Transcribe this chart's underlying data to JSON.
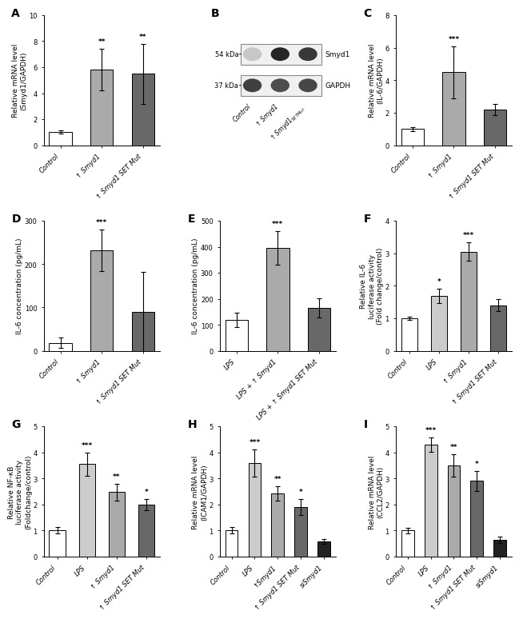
{
  "panel_A": {
    "label": "A",
    "categories": [
      "Control",
      "↑ Smyd1",
      "↑ Smyd1 SET Mut"
    ],
    "values": [
      1.0,
      5.8,
      5.5
    ],
    "errors": [
      0.12,
      1.6,
      2.3
    ],
    "colors": [
      "#ffffff",
      "#aaaaaa",
      "#686868"
    ],
    "ylabel": "Relative mRNA level\n(Smyd1/GAPDH)",
    "ylim": [
      0,
      10
    ],
    "yticks": [
      0,
      2,
      4,
      6,
      8,
      10
    ],
    "significance": [
      "",
      "**",
      "**"
    ]
  },
  "panel_C": {
    "label": "C",
    "categories": [
      "Control",
      "↑ Smyd1",
      "↑ Smyd1 SET Mut"
    ],
    "values": [
      1.0,
      4.5,
      2.2
    ],
    "errors": [
      0.12,
      1.6,
      0.35
    ],
    "colors": [
      "#ffffff",
      "#aaaaaa",
      "#686868"
    ],
    "ylabel": "Relative mRNA level\n(IL-6/GAPDH)",
    "ylim": [
      0,
      8
    ],
    "yticks": [
      0,
      2,
      4,
      6,
      8
    ],
    "significance": [
      "",
      "***",
      ""
    ]
  },
  "panel_D": {
    "label": "D",
    "categories": [
      "Control",
      "↑ Smyd1",
      "↑ Smyd1 SET Mut"
    ],
    "values": [
      18,
      232,
      90
    ],
    "errors": [
      12,
      48,
      92
    ],
    "colors": [
      "#ffffff",
      "#aaaaaa",
      "#686868"
    ],
    "ylabel": "IL-6 concentration (pg/mL)",
    "ylim": [
      0,
      300
    ],
    "yticks": [
      0,
      100,
      200,
      300
    ],
    "significance": [
      "",
      "***",
      ""
    ]
  },
  "panel_E": {
    "label": "E",
    "categories": [
      "LPS",
      "LPS + ↑ Smyd1",
      "LPS + ↑ Smyd1 SET Mut"
    ],
    "values": [
      118,
      395,
      165
    ],
    "errors": [
      28,
      65,
      38
    ],
    "colors": [
      "#ffffff",
      "#aaaaaa",
      "#686868"
    ],
    "ylabel": "IL-6 concentration (pg/mL)",
    "ylim": [
      0,
      500
    ],
    "yticks": [
      0,
      100,
      200,
      300,
      400,
      500
    ],
    "significance": [
      "",
      "***",
      ""
    ]
  },
  "panel_F": {
    "label": "F",
    "categories": [
      "Control",
      "LPS",
      "↑ Smyd1",
      "↑ Smyd1 SET Mut"
    ],
    "values": [
      1.0,
      1.7,
      3.05,
      1.4
    ],
    "errors": [
      0.06,
      0.22,
      0.28,
      0.18
    ],
    "colors": [
      "#ffffff",
      "#cccccc",
      "#aaaaaa",
      "#686868"
    ],
    "ylabel": "Relative IL-6\nluciferase activity\n(Fold change/control)",
    "ylim": [
      0,
      4
    ],
    "yticks": [
      0,
      1,
      2,
      3,
      4
    ],
    "significance": [
      "",
      "*",
      "***",
      ""
    ]
  },
  "panel_G": {
    "label": "G",
    "categories": [
      "Control",
      "LPS",
      "↑ Smyd1",
      "↑ Smyd1 SET Mut"
    ],
    "values": [
      1.0,
      3.55,
      2.48,
      2.0
    ],
    "errors": [
      0.12,
      0.45,
      0.32,
      0.22
    ],
    "colors": [
      "#ffffff",
      "#cccccc",
      "#aaaaaa",
      "#686868"
    ],
    "ylabel": "Relative NF-κB\nluciferase activity\n(Foldchange/control)",
    "ylim": [
      0,
      5
    ],
    "yticks": [
      0,
      1,
      2,
      3,
      4,
      5
    ],
    "significance": [
      "",
      "***",
      "**",
      "*"
    ]
  },
  "panel_H": {
    "label": "H",
    "categories": [
      "Control",
      "LPS",
      "↑Smyd1",
      "↑ Smyd1 SET Mut",
      "siSmyd1"
    ],
    "values": [
      1.0,
      3.58,
      2.42,
      1.9,
      0.58
    ],
    "errors": [
      0.12,
      0.52,
      0.28,
      0.3,
      0.1
    ],
    "colors": [
      "#ffffff",
      "#cccccc",
      "#aaaaaa",
      "#686868",
      "#222222"
    ],
    "ylabel": "Relative mRNA level\n(ICAM1/GAPDH)",
    "ylim": [
      0,
      5
    ],
    "yticks": [
      0,
      1,
      2,
      3,
      4,
      5
    ],
    "significance": [
      "",
      "***",
      "**",
      "*",
      ""
    ]
  },
  "panel_I": {
    "label": "I",
    "categories": [
      "Control",
      "LPS",
      "↑ Smyd1",
      "↑ Smyd1 SET Mut",
      "siSmyd1"
    ],
    "values": [
      1.0,
      4.3,
      3.5,
      2.9,
      0.65
    ],
    "errors": [
      0.1,
      0.28,
      0.42,
      0.38,
      0.12
    ],
    "colors": [
      "#ffffff",
      "#cccccc",
      "#aaaaaa",
      "#686868",
      "#222222"
    ],
    "ylabel": "Relative mRNA level\n(CCL2/GAPDH)",
    "ylim": [
      0,
      5
    ],
    "yticks": [
      0,
      1,
      2,
      3,
      4,
      5
    ],
    "significance": [
      "",
      "***",
      "**",
      "*",
      ""
    ]
  },
  "panel_B": {
    "label": "B",
    "kda1": "54 kDa",
    "kda2": "37 kDa",
    "band1_label": "Smyd1",
    "band2_label": "GAPDH",
    "lanes": [
      "Control",
      "↑ Smyd1",
      "↑ Smyd1$_{SET Mut}$"
    ]
  },
  "bar_edge_color": "#000000",
  "bar_linewidth": 0.7,
  "error_capsize": 2.5,
  "error_linewidth": 0.8,
  "sig_fontsize": 6.5,
  "tick_fontsize": 6.0,
  "ylabel_fontsize": 6.5,
  "panel_label_fontsize": 10,
  "bar_width": 0.55
}
